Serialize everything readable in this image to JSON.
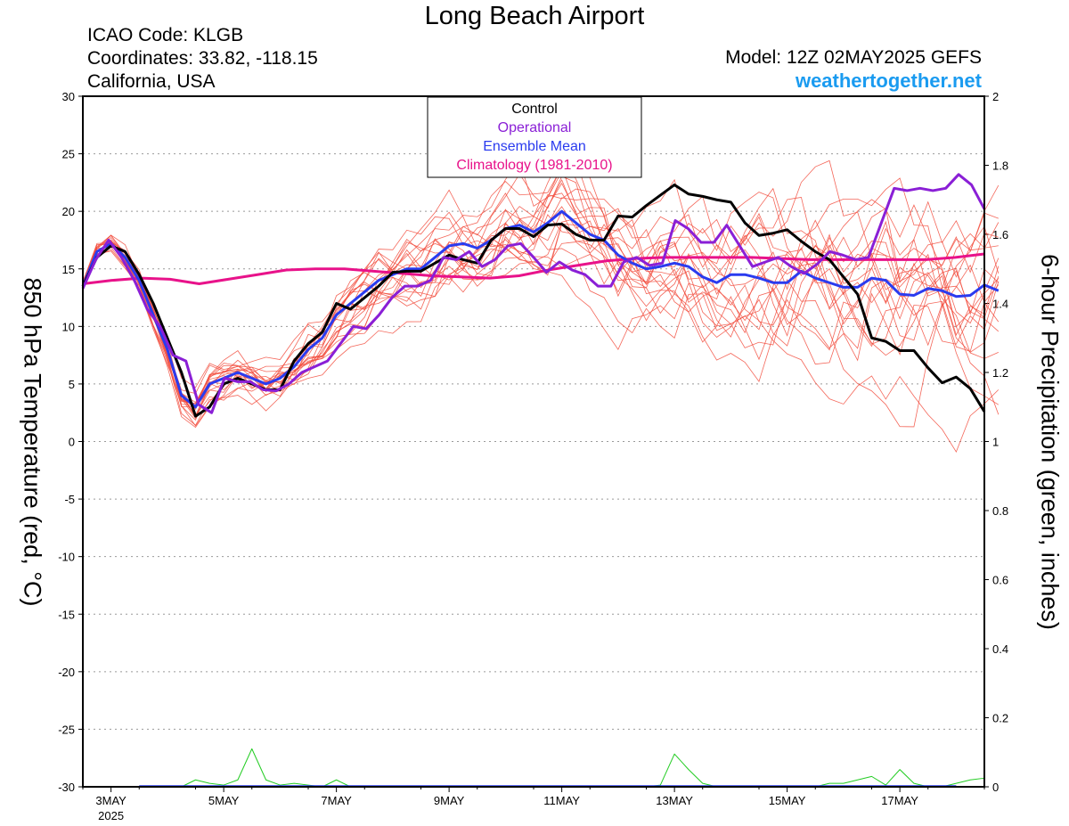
{
  "header": {
    "title": "Long Beach Airport",
    "icao": "ICAO Code: KLGB",
    "coords": "Coordinates: 33.82, -118.15",
    "region": "California, USA",
    "model": "Model: 12Z 02MAY2025 GEFS",
    "site": "weathertogether.net"
  },
  "chart_data": {
    "type": "line",
    "title": "Long Beach Airport",
    "ylabel": "850 hPa Temperature (red, °C)",
    "y2label": "6-hour Precipitation (green, inches)",
    "ylim": [
      -30,
      30
    ],
    "y2lim": [
      0,
      2
    ],
    "yticks": [
      30,
      25,
      20,
      15,
      10,
      5,
      0,
      -5,
      -10,
      -15,
      -20,
      -25,
      -30
    ],
    "y2ticks": [
      "2",
      "1.8",
      "1.6",
      "1.4",
      "1.2",
      "1",
      "0.8",
      "0.6",
      "0.4",
      "0.2",
      "0"
    ],
    "xlim": [
      0,
      64
    ],
    "xticks": [
      {
        "x": 2,
        "label": "3MAY",
        "sub": "2025"
      },
      {
        "x": 10,
        "label": "5MAY",
        "sub": ""
      },
      {
        "x": 18,
        "label": "7MAY",
        "sub": ""
      },
      {
        "x": 26,
        "label": "9MAY",
        "sub": ""
      },
      {
        "x": 34,
        "label": "11MAY",
        "sub": ""
      },
      {
        "x": 42,
        "label": "13MAY",
        "sub": ""
      },
      {
        "x": 50,
        "label": "15MAY",
        "sub": ""
      },
      {
        "x": 58,
        "label": "17MAY",
        "sub": ""
      }
    ],
    "legend_position": "top-center",
    "legend": [
      {
        "label": "Control",
        "color": "#000000"
      },
      {
        "label": "Operational",
        "color": "#8a1fd6"
      },
      {
        "label": "Ensemble Mean",
        "color": "#2a3bef"
      },
      {
        "label": "Climatology (1981-2010)",
        "color": "#e8128a"
      }
    ],
    "series": [
      {
        "name": "Control",
        "color": "#000000",
        "width": 3,
        "values": [
          13.5,
          16,
          17,
          16.5,
          14.5,
          12,
          9,
          6,
          2.2,
          3,
          5,
          5.5,
          5,
          4.5,
          4.5,
          7,
          8.5,
          9.5,
          12,
          11.5,
          12.5,
          13.5,
          14.7,
          14.8,
          14.8,
          15.5,
          16.2,
          15.8,
          15.5,
          17.5,
          18.5,
          18.5,
          17.8,
          18.8,
          18.9,
          18,
          17.5,
          17.5,
          19.6,
          19.5,
          20.5,
          21.4,
          22.3,
          21.5,
          21.3,
          21,
          20.8,
          19,
          17.9,
          18.1,
          18.4,
          17.4,
          16.5,
          15.8,
          14.3,
          12.8,
          9,
          8.7,
          7.9,
          7.9,
          6.4,
          5.1,
          5.6,
          4.6,
          2.6
        ]
      },
      {
        "name": "Operational",
        "color": "#8a1fd6",
        "width": 3,
        "values": [
          13.3,
          15.8,
          17.5,
          16,
          14,
          11.5,
          10,
          7.5,
          7,
          3.2,
          2.5,
          5.5,
          5.2,
          5.2,
          4.5,
          4.4,
          5,
          6,
          6.5,
          7,
          8.5,
          10,
          9.8,
          11,
          12.5,
          13.5,
          13.5,
          14,
          16,
          15.8,
          16.5,
          15.2,
          15.8,
          17,
          17.2,
          16,
          14.7,
          15.6,
          14.9,
          14.5,
          13.5,
          13.5,
          15.6,
          16,
          15.3,
          15.5,
          19.2,
          18.5,
          17.3,
          17.3,
          18.8,
          17,
          15.2,
          15.6,
          16,
          15.2,
          14.6,
          15.4,
          16.5,
          16.2,
          15.8,
          16,
          19,
          22,
          21.8,
          22,
          21.8,
          22,
          23.2,
          22.3,
          20.2
        ]
      },
      {
        "name": "Ensemble Mean",
        "color": "#2a3bef",
        "width": 3,
        "values": [
          13.5,
          16.5,
          17.2,
          16,
          14,
          11,
          8,
          4,
          3,
          5,
          5.5,
          6,
          5.5,
          5,
          5.5,
          6.5,
          8,
          9,
          11,
          12,
          13,
          14,
          14.5,
          15,
          15,
          16,
          17,
          17.2,
          16.8,
          17.5,
          18.5,
          18.8,
          18.2,
          19,
          20,
          19,
          18,
          17.5,
          16.2,
          15.5,
          15,
          15.2,
          15.5,
          15.2,
          14.3,
          13.8,
          14.5,
          14.5,
          14.2,
          13.8,
          13.8,
          14.8,
          14.2,
          13.8,
          13.4,
          13.4,
          14.2,
          14,
          12.8,
          12.7,
          13.3,
          13.1,
          12.6,
          12.7,
          13.6,
          13.1
        ]
      },
      {
        "name": "Climatology (1981-2010)",
        "color": "#e8128a",
        "width": 3,
        "values": [
          13.7,
          14,
          14.2,
          14.1,
          13.7,
          14.1,
          14.5,
          14.9,
          15.0,
          15.0,
          14.8,
          14.6,
          14.4,
          14.3,
          14.2,
          14.4,
          14.9,
          15.3,
          15.7,
          15.9,
          16.0,
          16.0,
          16.0,
          16.0,
          15.9,
          15.8,
          15.8,
          15.8,
          15.8,
          15.8,
          16.0,
          16.3
        ]
      },
      {
        "name": "Precipitation",
        "color": "#22cc22",
        "width": 1,
        "values": [
          0,
          0,
          0,
          0,
          0,
          0,
          0,
          0,
          0.02,
          0.01,
          0.005,
          0.02,
          0.11,
          0.02,
          0.005,
          0.01,
          0.005,
          0,
          0.02,
          0,
          0,
          0,
          0,
          0,
          0,
          0,
          0,
          0,
          0,
          0,
          0,
          0,
          0,
          0,
          0,
          0,
          0,
          0,
          0,
          0,
          0,
          0.005,
          0.095,
          0.05,
          0.01,
          0,
          0,
          0,
          0,
          0,
          0,
          0,
          0,
          0.01,
          0.01,
          0.02,
          0.03,
          0.005,
          0.05,
          0.01,
          0,
          0,
          0.01,
          0.02,
          0.025
        ]
      }
    ],
    "ensemble_members": 20
  }
}
